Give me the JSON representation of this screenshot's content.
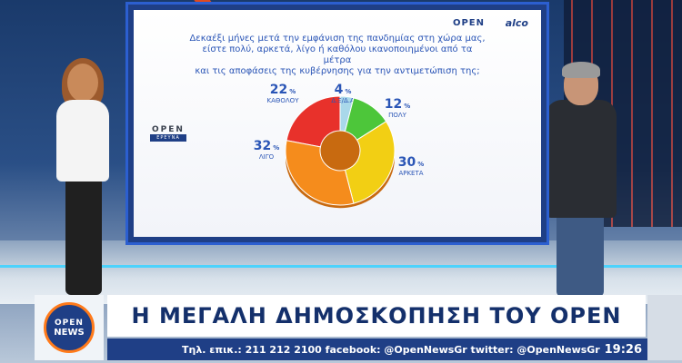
{
  "screen": {
    "brand_left": "OPEN",
    "brand_right": "alco",
    "question_lines": [
      "Δεκαέξι μήνες μετά την εμφάνιση της πανδημίας στη χώρα μας,",
      "είστε πολύ, αρκετά, λίγο ή καθόλου ικανοποιημένοι από τα μέτρα",
      "και τις αποφάσεις της κυβέρνησης για την αντιμετώπιση της;"
    ],
    "logo_text": "OPEN",
    "logo_sub": "ΕΡΕΥΝΑ"
  },
  "chart_data": {
    "type": "pie",
    "labels": [
      "ΚΑΘΟΛΟΥ",
      "Δ.Ξ/Δ.Α",
      "ΠΟΛΥ",
      "ΑΡΚΕΤΑ",
      "ΛΙΓΟ"
    ],
    "values": [
      22,
      4,
      12,
      30,
      32
    ],
    "display": [
      "22",
      "4",
      "12",
      "30",
      "32"
    ],
    "unit": "%",
    "colors": [
      "#e8312b",
      "#a9d8ea",
      "#4dc63a",
      "#f2cf14",
      "#f58c1c"
    ]
  },
  "lower_third": {
    "logo_line1": "OPEN",
    "logo_line2": "NEWS",
    "headline": "Η ΜΕΓΑΛΗ ΔΗΜΟΣΚΟΠΗΣΗ ΤΟΥ OPEN",
    "ticker": "Τηλ. επικ.: 211 212 2100 facebook: @OpenNewsGr twitter: @OpenNewsGr",
    "time": "19:26"
  }
}
